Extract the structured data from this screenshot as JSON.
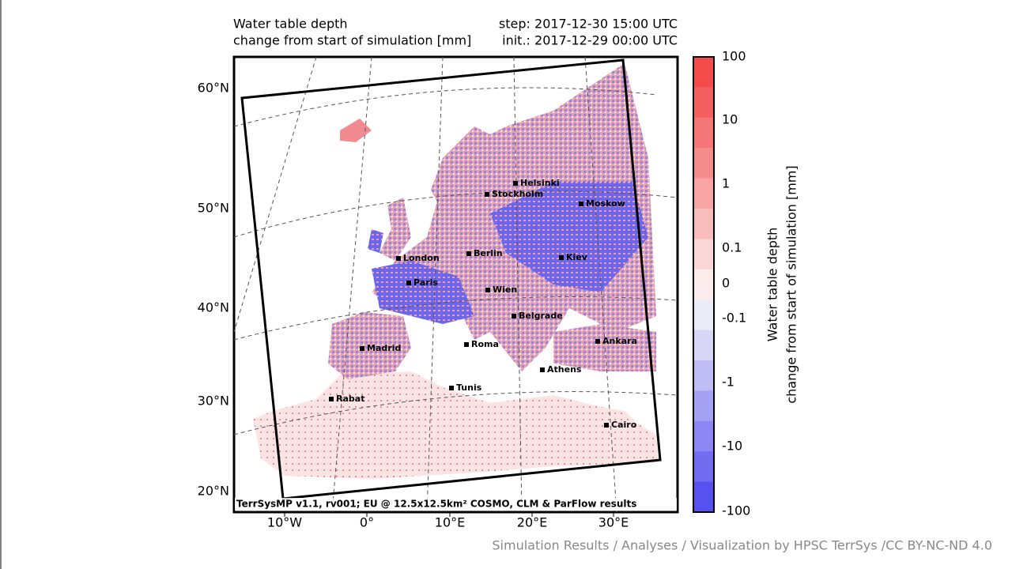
{
  "header": {
    "title_left": [
      "Water table depth",
      "change from start of simulation [mm]"
    ],
    "title_right": [
      "step: 2017-12-30 15:00 UTC",
      "init.: 2017-12-29 00:00 UTC"
    ]
  },
  "map": {
    "latitude_labels": [
      "60°N",
      "50°N",
      "40°N",
      "30°N",
      "20°N"
    ],
    "longitude_labels": [
      "10°W",
      "0°",
      "10°E",
      "20°E",
      "30°E"
    ],
    "cities": [
      "Helsinki",
      "Stockholm",
      "Moskow",
      "London",
      "Berlin",
      "Kiev",
      "Paris",
      "Wien",
      "Belgrade",
      "Madrid",
      "Roma",
      "Ankara",
      "Athens",
      "Tunis",
      "Rabat",
      "Cairo"
    ],
    "model_note": "TerrSysMP v1.1, rv001; EU @ 12.5x12.5km² COSMO, CLM & ParFlow results"
  },
  "colorbar": {
    "title": [
      "Water table depth",
      "change from start of simulation [mm]"
    ],
    "tick_labels": [
      "100",
      "10",
      "1",
      "0.1",
      "0",
      "-0.1",
      "-1",
      "-10",
      "-100"
    ],
    "colors": [
      "#f44b4b",
      "#f46060",
      "#f47676",
      "#f58c8c",
      "#f6a4a4",
      "#f8bcbc",
      "#fad6d6",
      "#fcecec",
      "#ecebf8",
      "#d8d6f6",
      "#c0bcf5",
      "#a6a2f3",
      "#8c87f2",
      "#716cf0",
      "#5752ef"
    ]
  },
  "footer": {
    "credit": "Simulation Results / Analyses / Visualization by HPSC TerrSys /CC BY-NC-ND 4.0"
  }
}
